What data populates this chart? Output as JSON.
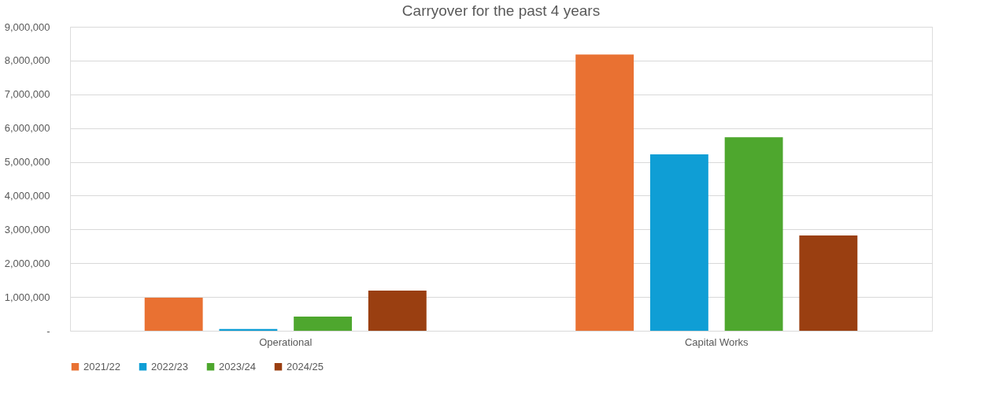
{
  "chart_data": {
    "type": "bar",
    "title": "Carryover for the past 4 years",
    "categories": [
      "Operational",
      "Capital Works"
    ],
    "series": [
      {
        "name": "2021/22",
        "color": "#e97132",
        "values": [
          980000,
          8180000
        ]
      },
      {
        "name": "2022/23",
        "color": "#0f9ed5",
        "values": [
          50000,
          5220000
        ]
      },
      {
        "name": "2023/24",
        "color": "#4ea72e",
        "values": [
          420000,
          5730000
        ]
      },
      {
        "name": "2024/25",
        "color": "#9a3f11",
        "values": [
          1190000,
          2820000
        ]
      }
    ],
    "ylim": [
      0,
      9000000
    ],
    "yticks": [
      {
        "value": 0,
        "label": "-"
      },
      {
        "value": 1000000,
        "label": "1,000,000"
      },
      {
        "value": 2000000,
        "label": "2,000,000"
      },
      {
        "value": 3000000,
        "label": "3,000,000"
      },
      {
        "value": 4000000,
        "label": "4,000,000"
      },
      {
        "value": 5000000,
        "label": "5,000,000"
      },
      {
        "value": 6000000,
        "label": "6,000,000"
      },
      {
        "value": 7000000,
        "label": "7,000,000"
      },
      {
        "value": 8000000,
        "label": "8,000,000"
      },
      {
        "value": 9000000,
        "label": "9,000,000"
      }
    ],
    "grid": "y",
    "legend": "bottom"
  }
}
